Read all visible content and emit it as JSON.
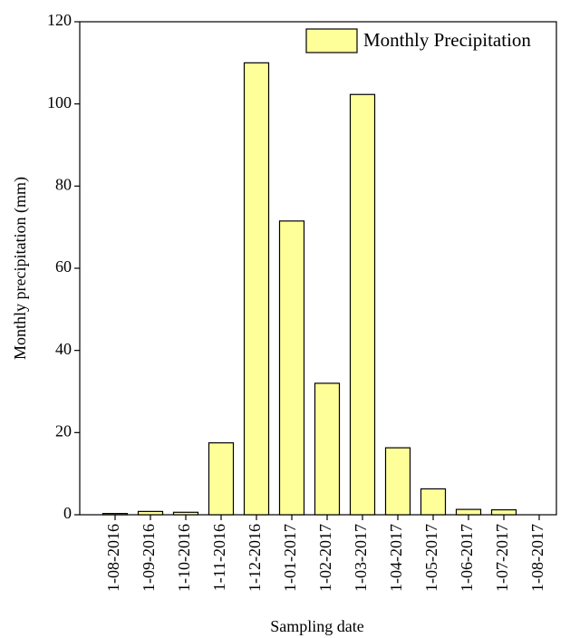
{
  "chart_data": {
    "type": "bar",
    "xlabel": "Sampling date",
    "ylabel": "Monthly precipitation (mm)",
    "categories": [
      "1-08-2016",
      "1-09-2016",
      "1-10-2016",
      "1-11-2016",
      "1-12-2016",
      "1-01-2017",
      "1-02-2017",
      "1-03-2017",
      "1-04-2017",
      "1-05-2017",
      "1-06-2017",
      "1-07-2017",
      "1-08-2017"
    ],
    "series": [
      {
        "name": "Monthly Precipitation",
        "color": "#ffff99",
        "values": [
          0.3,
          0.8,
          0.6,
          17.5,
          110,
          71.5,
          32,
          102.3,
          16.3,
          6.3,
          1.3,
          1.2,
          0
        ]
      }
    ],
    "ylim": [
      0,
      120
    ],
    "yticks": [
      0,
      20,
      40,
      60,
      80,
      100,
      120
    ],
    "legend": "upper right"
  }
}
